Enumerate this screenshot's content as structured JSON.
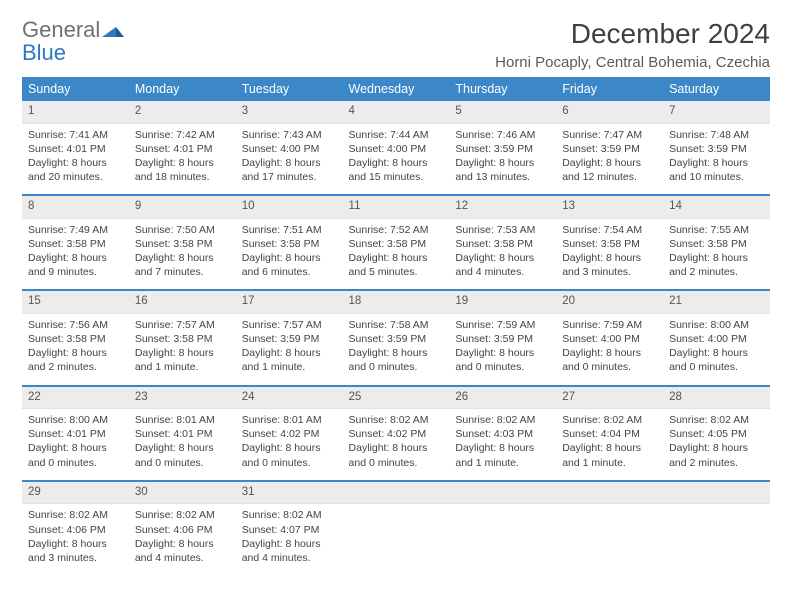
{
  "brand": {
    "general": "General",
    "blue": "Blue",
    "brand_color": "#2f78c2"
  },
  "header": {
    "month_title": "December 2024",
    "location": "Horni Pocaply, Central Bohemia, Czechia"
  },
  "colors": {
    "header_bg": "#3b87c8",
    "header_text": "#ffffff",
    "daynum_bg": "#ececec",
    "rule": "#3b87c8",
    "text": "#444444"
  },
  "daynames": [
    "Sunday",
    "Monday",
    "Tuesday",
    "Wednesday",
    "Thursday",
    "Friday",
    "Saturday"
  ],
  "weeks": [
    [
      {
        "n": "1",
        "sr": "Sunrise: 7:41 AM",
        "ss": "Sunset: 4:01 PM",
        "d1": "Daylight: 8 hours",
        "d2": "and 20 minutes."
      },
      {
        "n": "2",
        "sr": "Sunrise: 7:42 AM",
        "ss": "Sunset: 4:01 PM",
        "d1": "Daylight: 8 hours",
        "d2": "and 18 minutes."
      },
      {
        "n": "3",
        "sr": "Sunrise: 7:43 AM",
        "ss": "Sunset: 4:00 PM",
        "d1": "Daylight: 8 hours",
        "d2": "and 17 minutes."
      },
      {
        "n": "4",
        "sr": "Sunrise: 7:44 AM",
        "ss": "Sunset: 4:00 PM",
        "d1": "Daylight: 8 hours",
        "d2": "and 15 minutes."
      },
      {
        "n": "5",
        "sr": "Sunrise: 7:46 AM",
        "ss": "Sunset: 3:59 PM",
        "d1": "Daylight: 8 hours",
        "d2": "and 13 minutes."
      },
      {
        "n": "6",
        "sr": "Sunrise: 7:47 AM",
        "ss": "Sunset: 3:59 PM",
        "d1": "Daylight: 8 hours",
        "d2": "and 12 minutes."
      },
      {
        "n": "7",
        "sr": "Sunrise: 7:48 AM",
        "ss": "Sunset: 3:59 PM",
        "d1": "Daylight: 8 hours",
        "d2": "and 10 minutes."
      }
    ],
    [
      {
        "n": "8",
        "sr": "Sunrise: 7:49 AM",
        "ss": "Sunset: 3:58 PM",
        "d1": "Daylight: 8 hours",
        "d2": "and 9 minutes."
      },
      {
        "n": "9",
        "sr": "Sunrise: 7:50 AM",
        "ss": "Sunset: 3:58 PM",
        "d1": "Daylight: 8 hours",
        "d2": "and 7 minutes."
      },
      {
        "n": "10",
        "sr": "Sunrise: 7:51 AM",
        "ss": "Sunset: 3:58 PM",
        "d1": "Daylight: 8 hours",
        "d2": "and 6 minutes."
      },
      {
        "n": "11",
        "sr": "Sunrise: 7:52 AM",
        "ss": "Sunset: 3:58 PM",
        "d1": "Daylight: 8 hours",
        "d2": "and 5 minutes."
      },
      {
        "n": "12",
        "sr": "Sunrise: 7:53 AM",
        "ss": "Sunset: 3:58 PM",
        "d1": "Daylight: 8 hours",
        "d2": "and 4 minutes."
      },
      {
        "n": "13",
        "sr": "Sunrise: 7:54 AM",
        "ss": "Sunset: 3:58 PM",
        "d1": "Daylight: 8 hours",
        "d2": "and 3 minutes."
      },
      {
        "n": "14",
        "sr": "Sunrise: 7:55 AM",
        "ss": "Sunset: 3:58 PM",
        "d1": "Daylight: 8 hours",
        "d2": "and 2 minutes."
      }
    ],
    [
      {
        "n": "15",
        "sr": "Sunrise: 7:56 AM",
        "ss": "Sunset: 3:58 PM",
        "d1": "Daylight: 8 hours",
        "d2": "and 2 minutes."
      },
      {
        "n": "16",
        "sr": "Sunrise: 7:57 AM",
        "ss": "Sunset: 3:58 PM",
        "d1": "Daylight: 8 hours",
        "d2": "and 1 minute."
      },
      {
        "n": "17",
        "sr": "Sunrise: 7:57 AM",
        "ss": "Sunset: 3:59 PM",
        "d1": "Daylight: 8 hours",
        "d2": "and 1 minute."
      },
      {
        "n": "18",
        "sr": "Sunrise: 7:58 AM",
        "ss": "Sunset: 3:59 PM",
        "d1": "Daylight: 8 hours",
        "d2": "and 0 minutes."
      },
      {
        "n": "19",
        "sr": "Sunrise: 7:59 AM",
        "ss": "Sunset: 3:59 PM",
        "d1": "Daylight: 8 hours",
        "d2": "and 0 minutes."
      },
      {
        "n": "20",
        "sr": "Sunrise: 7:59 AM",
        "ss": "Sunset: 4:00 PM",
        "d1": "Daylight: 8 hours",
        "d2": "and 0 minutes."
      },
      {
        "n": "21",
        "sr": "Sunrise: 8:00 AM",
        "ss": "Sunset: 4:00 PM",
        "d1": "Daylight: 8 hours",
        "d2": "and 0 minutes."
      }
    ],
    [
      {
        "n": "22",
        "sr": "Sunrise: 8:00 AM",
        "ss": "Sunset: 4:01 PM",
        "d1": "Daylight: 8 hours",
        "d2": "and 0 minutes."
      },
      {
        "n": "23",
        "sr": "Sunrise: 8:01 AM",
        "ss": "Sunset: 4:01 PM",
        "d1": "Daylight: 8 hours",
        "d2": "and 0 minutes."
      },
      {
        "n": "24",
        "sr": "Sunrise: 8:01 AM",
        "ss": "Sunset: 4:02 PM",
        "d1": "Daylight: 8 hours",
        "d2": "and 0 minutes."
      },
      {
        "n": "25",
        "sr": "Sunrise: 8:02 AM",
        "ss": "Sunset: 4:02 PM",
        "d1": "Daylight: 8 hours",
        "d2": "and 0 minutes."
      },
      {
        "n": "26",
        "sr": "Sunrise: 8:02 AM",
        "ss": "Sunset: 4:03 PM",
        "d1": "Daylight: 8 hours",
        "d2": "and 1 minute."
      },
      {
        "n": "27",
        "sr": "Sunrise: 8:02 AM",
        "ss": "Sunset: 4:04 PM",
        "d1": "Daylight: 8 hours",
        "d2": "and 1 minute."
      },
      {
        "n": "28",
        "sr": "Sunrise: 8:02 AM",
        "ss": "Sunset: 4:05 PM",
        "d1": "Daylight: 8 hours",
        "d2": "and 2 minutes."
      }
    ],
    [
      {
        "n": "29",
        "sr": "Sunrise: 8:02 AM",
        "ss": "Sunset: 4:06 PM",
        "d1": "Daylight: 8 hours",
        "d2": "and 3 minutes."
      },
      {
        "n": "30",
        "sr": "Sunrise: 8:02 AM",
        "ss": "Sunset: 4:06 PM",
        "d1": "Daylight: 8 hours",
        "d2": "and 4 minutes."
      },
      {
        "n": "31",
        "sr": "Sunrise: 8:02 AM",
        "ss": "Sunset: 4:07 PM",
        "d1": "Daylight: 8 hours",
        "d2": "and 4 minutes."
      },
      {
        "empty": true
      },
      {
        "empty": true
      },
      {
        "empty": true
      },
      {
        "empty": true
      }
    ]
  ]
}
